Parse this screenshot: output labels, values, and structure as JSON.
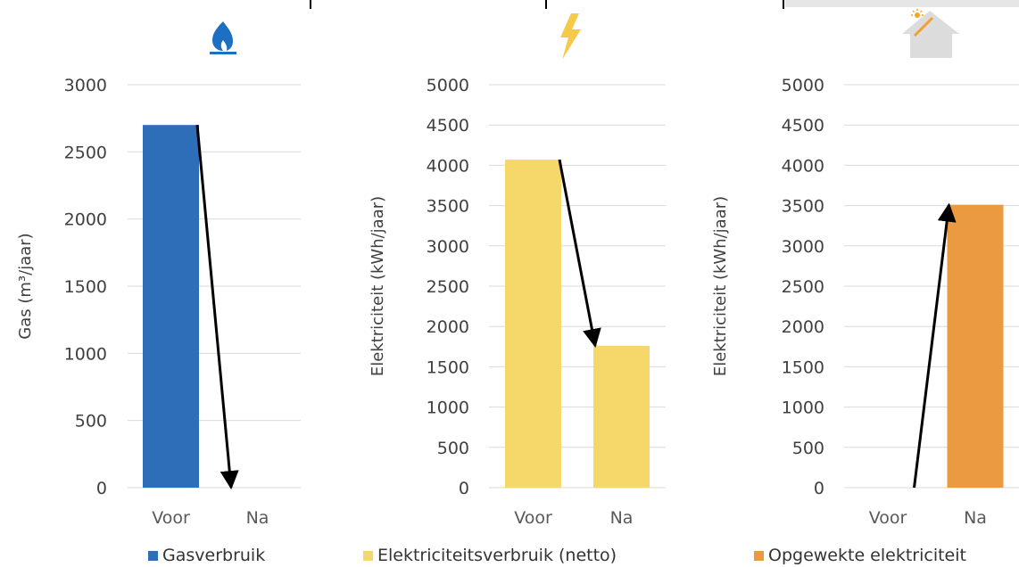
{
  "chart_data": [
    {
      "type": "bar",
      "icon": "gas-flame-icon",
      "categories": [
        "Voor",
        "Na"
      ],
      "values": [
        2700,
        0
      ],
      "ylabel": "Gas (m³/jaar)",
      "ylim": [
        0,
        3000
      ],
      "yticks": [
        "0",
        "500",
        "1000",
        "1500",
        "2000",
        "2500",
        "3000"
      ],
      "legend": "Gasverbruik",
      "color": "#2E6EB8",
      "arrow": "decrease",
      "grid": true
    },
    {
      "type": "bar",
      "icon": "lightning-icon",
      "categories": [
        "Voor",
        "Na"
      ],
      "values": [
        4070,
        1760
      ],
      "ylabel": "Elektriciteit (kWh/jaar)",
      "ylim": [
        0,
        5000
      ],
      "yticks": [
        "0",
        "500",
        "1000",
        "1500",
        "2000",
        "2500",
        "3000",
        "3500",
        "4000",
        "4500",
        "5000"
      ],
      "legend": "Elektriciteitsverbruik (netto)",
      "color": "#F5D76A",
      "arrow": "decrease",
      "grid": true
    },
    {
      "type": "bar",
      "icon": "solar-house-icon",
      "categories": [
        "Voor",
        "Na"
      ],
      "values": [
        0,
        3510
      ],
      "ylabel": "Elektriciteit (kWh/jaar)",
      "ylim": [
        0,
        5000
      ],
      "yticks": [
        "0",
        "500",
        "1000",
        "1500",
        "2000",
        "2500",
        "3000",
        "3500",
        "4000",
        "4500",
        "5000"
      ],
      "legend": "Opgewekte elektriciteit",
      "color": "#EB9A40",
      "arrow": "increase",
      "grid": true
    }
  ]
}
